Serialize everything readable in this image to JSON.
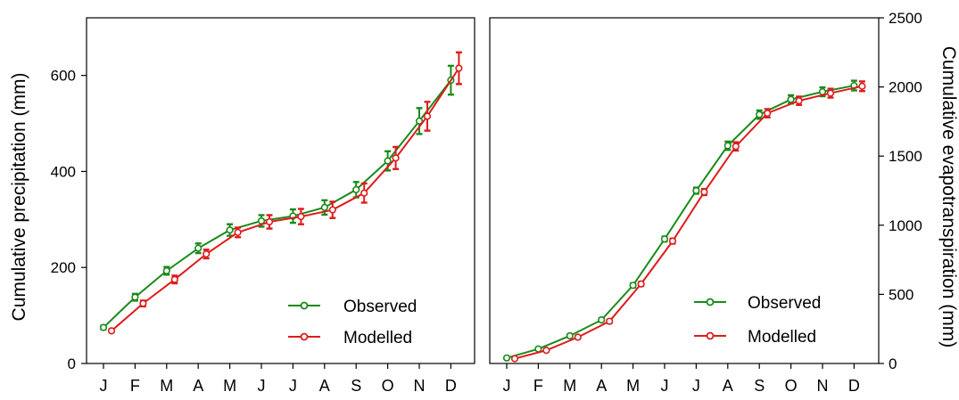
{
  "colors": {
    "observed": "#1a8a1a",
    "modelled": "#dd1c1c",
    "axis": "#000000"
  },
  "chart_data": [
    {
      "type": "line",
      "ylabel": "Cumulative precipitation (mm)",
      "y_axis_side": "left",
      "ylim": [
        0,
        720
      ],
      "yticks": [
        0,
        200,
        400,
        600
      ],
      "categories": [
        "J",
        "F",
        "M",
        "A",
        "M",
        "J",
        "J",
        "A",
        "S",
        "O",
        "N",
        "D"
      ],
      "legend": {
        "placement": "bottom-right"
      },
      "series": [
        {
          "name": "Observed",
          "color": "#1a8a1a",
          "values": [
            75,
            138,
            193,
            240,
            278,
            297,
            307,
            325,
            362,
            422,
            505,
            590
          ],
          "err": [
            4,
            7,
            8,
            10,
            12,
            12,
            14,
            15,
            16,
            20,
            27,
            30
          ]
        },
        {
          "name": "Modelled",
          "color": "#dd1c1c",
          "values": [
            68,
            125,
            175,
            228,
            273,
            295,
            306,
            320,
            355,
            428,
            515,
            615
          ],
          "err": [
            3,
            6,
            8,
            9,
            10,
            14,
            16,
            17,
            20,
            23,
            30,
            33
          ]
        }
      ]
    },
    {
      "type": "line",
      "ylabel": "Cumulative evapotranspiration (mm)",
      "y_axis_side": "right",
      "ylim": [
        0,
        2500
      ],
      "yticks": [
        0,
        500,
        1000,
        1500,
        2000,
        2500
      ],
      "categories": [
        "J",
        "F",
        "M",
        "A",
        "M",
        "J",
        "J",
        "A",
        "S",
        "O",
        "N",
        "D"
      ],
      "legend": {
        "placement": "bottom-right"
      },
      "series": [
        {
          "name": "Observed",
          "color": "#1a8a1a",
          "values": [
            40,
            105,
            200,
            315,
            565,
            900,
            1250,
            1575,
            1800,
            1910,
            1965,
            2010
          ],
          "err": [
            5,
            8,
            10,
            12,
            15,
            18,
            22,
            30,
            30,
            30,
            32,
            35
          ]
        },
        {
          "name": "Modelled",
          "color": "#dd1c1c",
          "values": [
            35,
            95,
            190,
            305,
            575,
            885,
            1240,
            1570,
            1810,
            1900,
            1955,
            2005
          ],
          "err": [
            4,
            7,
            10,
            12,
            15,
            18,
            22,
            30,
            30,
            30,
            32,
            35
          ]
        }
      ]
    }
  ]
}
